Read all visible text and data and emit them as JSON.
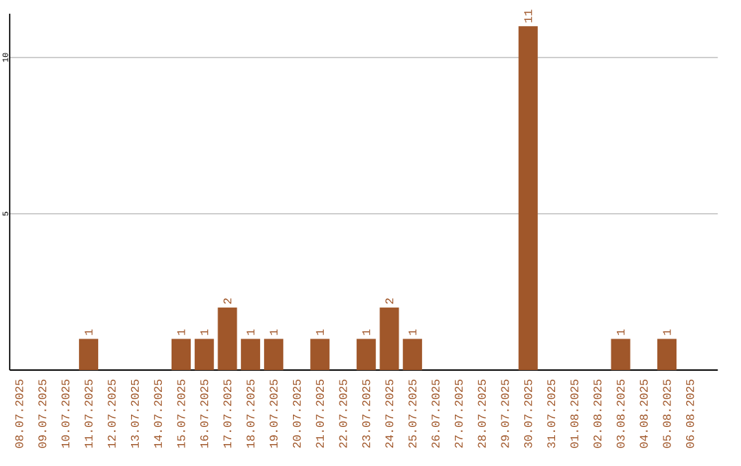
{
  "chart_data": {
    "type": "bar",
    "categories": [
      "08.07.2025",
      "09.07.2025",
      "10.07.2025",
      "11.07.2025",
      "12.07.2025",
      "13.07.2025",
      "14.07.2025",
      "15.07.2025",
      "16.07.2025",
      "17.07.2025",
      "18.07.2025",
      "19.07.2025",
      "20.07.2025",
      "21.07.2025",
      "22.07.2025",
      "23.07.2025",
      "24.07.2025",
      "25.07.2025",
      "26.07.2025",
      "27.07.2025",
      "28.07.2025",
      "29.07.2025",
      "30.07.2025",
      "31.07.2025",
      "01.08.2025",
      "02.08.2025",
      "03.08.2025",
      "04.08.2025",
      "05.08.2025",
      "06.08.2025"
    ],
    "values": [
      0,
      0,
      0,
      1,
      0,
      0,
      0,
      1,
      1,
      2,
      1,
      1,
      0,
      1,
      0,
      1,
      2,
      1,
      0,
      0,
      0,
      0,
      11,
      0,
      0,
      0,
      1,
      0,
      1,
      0
    ],
    "value_labels": [
      null,
      null,
      null,
      "1",
      null,
      null,
      null,
      "1",
      "1",
      "2",
      "1",
      "1",
      null,
      "1",
      null,
      "1",
      "2",
      "1",
      null,
      null,
      null,
      null,
      "11",
      null,
      null,
      null,
      "1",
      null,
      "1",
      null
    ],
    "color": "#a0572a",
    "ylim": [
      0,
      11.4
    ],
    "yticks": [
      5,
      10
    ],
    "grid": "y"
  }
}
